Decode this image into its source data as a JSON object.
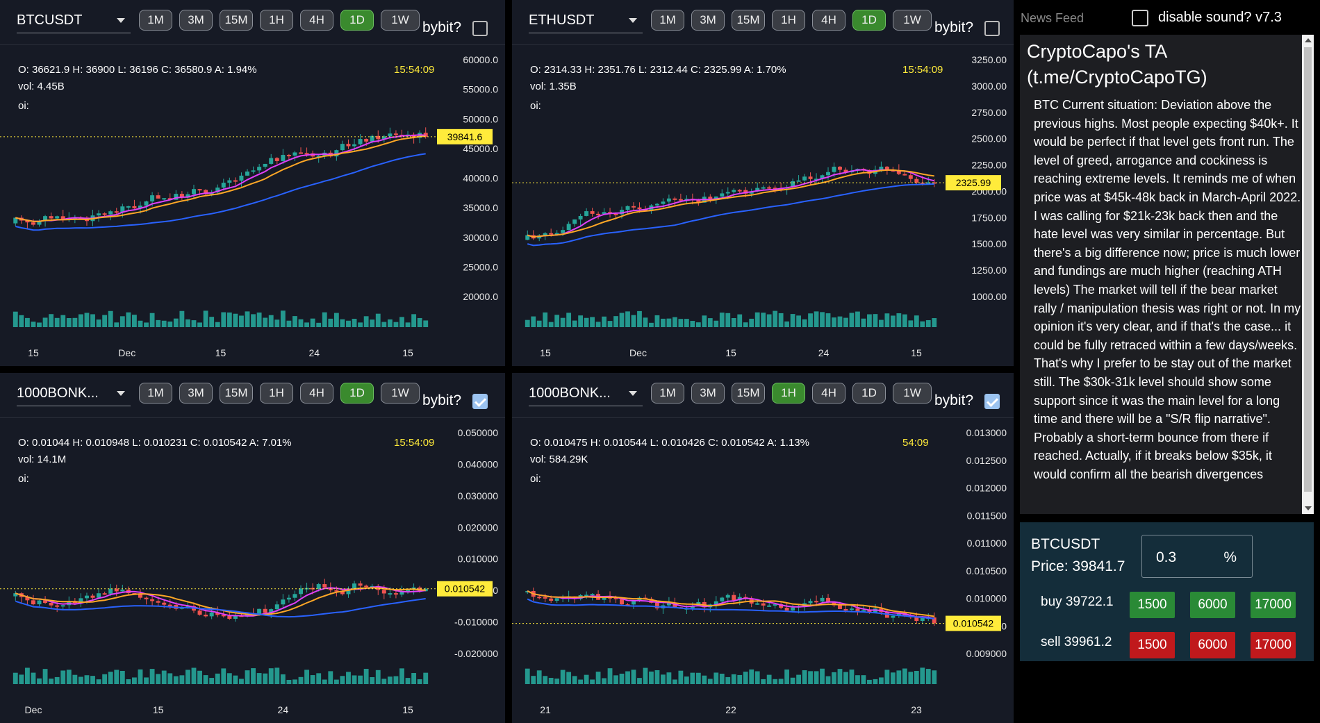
{
  "timeframes": [
    "1M",
    "3M",
    "15M",
    "1H",
    "4H",
    "1D",
    "1W"
  ],
  "bybit_label": "bybit?",
  "charts": [
    {
      "symbol": "BTCUSDT",
      "active_tf": "1D",
      "bybit_checked": false,
      "ohlc": "O: 36621.9 H: 36900 L: 36196 C: 36580.9 A: 1.94%",
      "vol": "vol: 4.45B",
      "oi": "oi:",
      "clock": "15:54:09",
      "price_tag": "39841.6",
      "y_ticks": [
        "60000.0",
        "55000.0",
        "50000.0",
        "45000.0",
        "40000.0",
        "35000.0",
        "30000.0",
        "25000.0",
        "20000.0"
      ],
      "x_ticks": [
        "15",
        "Dec",
        "15",
        "24",
        "15"
      ],
      "colors": {
        "candle_up": "#26a69a",
        "candle_down": "#ef5350",
        "ma_fast": "#e040fb",
        "ma_mid": "#ffa726",
        "ma_slow": "#2962ff",
        "price_tag_bg": "#ffeb3b"
      }
    },
    {
      "symbol": "ETHUSDT",
      "active_tf": "1D",
      "bybit_checked": false,
      "ohlc": "O: 2314.33 H: 2351.76 L: 2312.44 C: 2325.99 A: 1.70%",
      "vol": "vol: 1.35B",
      "oi": "oi:",
      "clock": "15:54:09",
      "price_tag": "2325.99",
      "y_ticks": [
        "3250.00",
        "3000.00",
        "2750.00",
        "2500.00",
        "2250.00",
        "2000.00",
        "1750.00",
        "1500.00",
        "1250.00",
        "1000.00"
      ],
      "x_ticks": [
        "15",
        "Dec",
        "15",
        "24",
        "15"
      ]
    },
    {
      "symbol": "1000BONK...",
      "active_tf": "1D",
      "bybit_checked": true,
      "ohlc": "O: 0.01044 H: 0.010948 L: 0.010231 C: 0.010542 A: 7.01%",
      "vol": "vol: 14.1M",
      "oi": "oi:",
      "clock": "15:54:09",
      "price_tag": "0.010542",
      "y_ticks": [
        "0.050000",
        "0.040000",
        "0.030000",
        "0.020000",
        "0.010000",
        "-0.000000",
        "-0.010000",
        "-0.020000"
      ],
      "x_ticks": [
        "Dec",
        "15",
        "24",
        "15"
      ]
    },
    {
      "symbol": "1000BONK...",
      "active_tf": "1H",
      "bybit_checked": true,
      "ohlc": "O: 0.010475 H: 0.010544 L: 0.010426 C: 0.010542 A: 1.13%",
      "vol": "vol: 584.29K",
      "oi": "oi:",
      "clock": "54:09",
      "price_tag": "0.010542",
      "y_ticks": [
        "0.013000",
        "0.012500",
        "0.012000",
        "0.011500",
        "0.011000",
        "0.010500",
        "0.010000",
        "0.009500",
        "0.009000"
      ],
      "x_ticks": [
        "21",
        "22",
        "23"
      ]
    }
  ],
  "news": {
    "header_label": "News Feed",
    "sound_label": "disable sound? v7.3",
    "title": "CryptoCapo's TA (t.me/CryptoCapoTG)",
    "body": "BTC Current situation: Deviation above the previous highs. Most people expecting $40k+. It would be perfect if that level gets front run. The level of greed, arrogance and cockiness is reaching extreme levels. It reminds me of when price was at $45k-48k back in March-April 2022. I was calling for $21k-23k back then and  the hate level was very similar in percentage. But there's a big difference now; price is much lower and fundings are much higher (reaching ATH levels) The market will tell if the bear market rally / manipulation thesis was right or not. In my opinion it's very clear, and if that's the case... it could be fully retraced within a few days/weeks. That's why I prefer to be stay out of the market still. The $30k-31k level should show some support since it was the main level for a long time and there will be a \"S/R flip narrative\". Probably a short-term bounce from there if reached. Actually, if it breaks below $35k, it would confirm all the bearish divergences"
  },
  "trade": {
    "symbol": "BTCUSDT",
    "price": "Price: 39841.7",
    "pct_value": "0.3",
    "pct_sign": "%",
    "buy_label": "buy 39722.1",
    "sell_label": "sell 39961.2",
    "amounts": [
      "1500",
      "6000",
      "17000"
    ]
  }
}
